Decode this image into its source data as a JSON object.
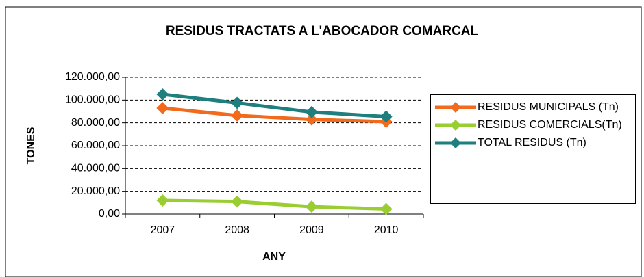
{
  "chart_data": {
    "type": "line",
    "title": "RESIDUS TRACTATS A L'ABOCADOR COMARCAL",
    "x_label": "ANY",
    "y_label": "TONES",
    "categories": [
      "2007",
      "2008",
      "2009",
      "2010"
    ],
    "series": [
      {
        "name": "RESIDUS MUNICIPALS (Tn)",
        "color": "#f26a1b",
        "values": [
          93000,
          86500,
          83000,
          81000
        ]
      },
      {
        "name": "RESIDUS COMERCIALS(Tn)",
        "color": "#9acd32",
        "values": [
          12000,
          11000,
          6500,
          4500
        ]
      },
      {
        "name": "TOTAL RESIDUS (Tn)",
        "color": "#1f7f7f",
        "values": [
          105000,
          97500,
          89500,
          85500
        ]
      }
    ],
    "ylim": [
      0,
      120000
    ],
    "yticks": [
      {
        "value": 0,
        "label": "0,00"
      },
      {
        "value": 20000,
        "label": "20.000,00"
      },
      {
        "value": 40000,
        "label": "40.000,00"
      },
      {
        "value": 60000,
        "label": "60.000,00"
      },
      {
        "value": 80000,
        "label": "80.000,00"
      },
      {
        "value": 100000,
        "label": "100.000,00"
      },
      {
        "value": 120000,
        "label": "120.000,00"
      }
    ],
    "grid": true,
    "legend": "right"
  }
}
